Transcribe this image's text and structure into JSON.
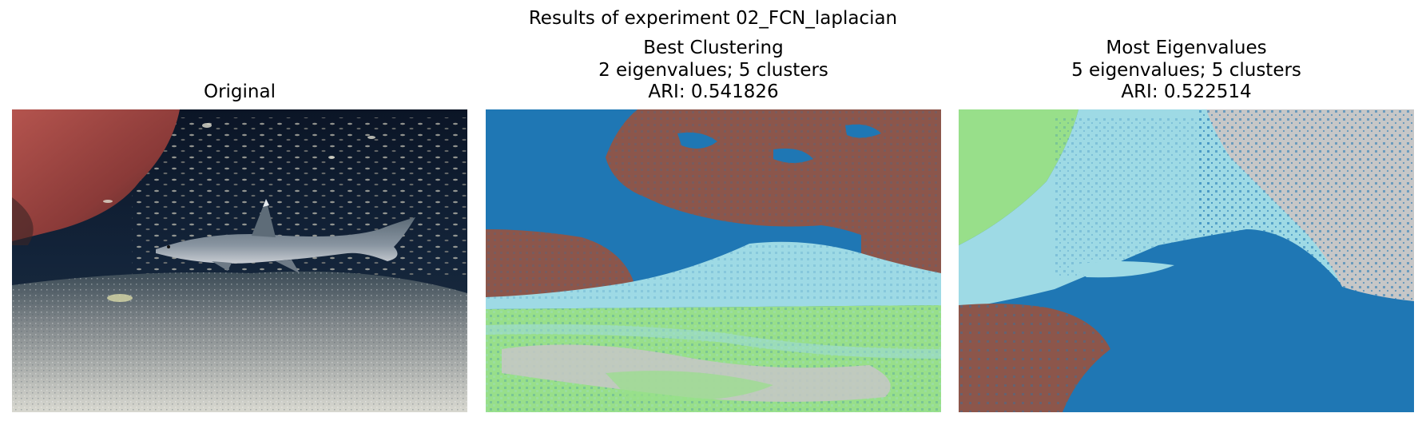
{
  "suptitle": "Results of experiment 02_FCN_laplacian",
  "panels": [
    {
      "title_lines": [
        "Original"
      ],
      "image": "underwater photo of a whitetip reef shark swimming above a sandy sea floor beside a rocky reef, with a dense school of small silver fish in the background"
    },
    {
      "title_lines": [
        "Best Clustering",
        "2 eigenvalues; 5 clusters",
        "ARI: 0.541826"
      ]
    },
    {
      "title_lines": [
        "Most Eigenvalues",
        "5 eigenvalues; 5 clusters",
        "ARI: 0.522514"
      ]
    }
  ],
  "cluster_colors": {
    "dark_blue": "#1f77b4",
    "brown": "#8c564b",
    "light_blue": "#9edae5",
    "light_green": "#98df8a",
    "gray": "#c7c7c7"
  }
}
